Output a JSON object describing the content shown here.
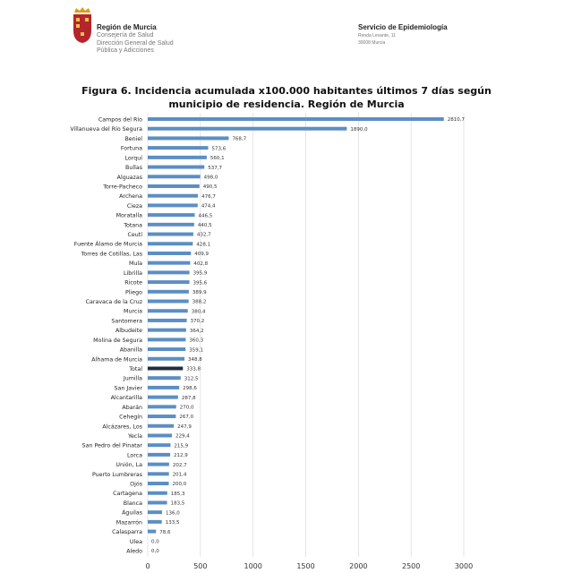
{
  "header": {
    "org_name": "Región de Murcia",
    "org_sub": "Consejería de Salud",
    "dept_line1": "Dirección General de Salud",
    "dept_line2": "Pública y Adicciones",
    "service_name": "Servicio de Epidemiología",
    "address_line1": "Ronda Levante, 11",
    "address_line2": "30008 Murcia"
  },
  "colors": {
    "bar": "#5b8ec4",
    "total_bar": "#1f2d3d",
    "grid": "#d9d9d9",
    "logo": "#b3262b"
  },
  "chart_data": {
    "type": "bar",
    "orientation": "horizontal",
    "title_line1": "Figura 6. Incidencia acumulada  x100.000 habitantes últimos 7 días según",
    "title_line2": "municipio  de residencia. Región de Murcia",
    "xlim": [
      0,
      3000
    ],
    "xticks": [
      0,
      500,
      1000,
      1500,
      2000,
      2500,
      3000
    ],
    "grid": true,
    "data_labels": true,
    "highlighted_category": "Total",
    "categories": [
      "Campos del Río",
      "Villanueva del Río Segura",
      "Beniel",
      "Fortuna",
      "Lorquí",
      "Bullas",
      "Alguazas",
      "Torre-Pacheco",
      "Archena",
      "Cieza",
      "Moratalla",
      "Totana",
      "Ceutí",
      "Fuente Álamo de Murcia",
      "Torres de Cotillas, Las",
      "Mula",
      "Librilla",
      "Ricote",
      "Pliego",
      "Caravaca de la Cruz",
      "Murcia",
      "Santomera",
      "Albudeite",
      "Molina de Segura",
      "Abanilla",
      "Alhama de Murcia",
      "Total",
      "Jumilla",
      "San Javier",
      "Alcantarilla",
      "Abarán",
      "Cehegín",
      "Alcázares, Los",
      "Yecla",
      "San Pedro del Pinatar",
      "Lorca",
      "Unión, La",
      "Puerto Lumbreras",
      "Ojós",
      "Cartagena",
      "Blanca",
      "Águilas",
      "Mazarrón",
      "Calasparra",
      "Ulea",
      "Aledo"
    ],
    "values": [
      2810.7,
      1890.0,
      768.7,
      573.6,
      560.1,
      537.7,
      498.0,
      490.5,
      476.7,
      474.4,
      446.5,
      440.5,
      432.7,
      428.1,
      409.9,
      402.8,
      395.9,
      395.6,
      389.9,
      388.2,
      380.4,
      370.2,
      364.2,
      360.3,
      359.1,
      348.8,
      333.8,
      312.5,
      298.6,
      287.8,
      270.0,
      267.0,
      247.9,
      229.4,
      215.9,
      212.9,
      202.7,
      201.4,
      200.0,
      185.3,
      183.5,
      136.0,
      133.5,
      78.6,
      0.0,
      0.0
    ]
  }
}
